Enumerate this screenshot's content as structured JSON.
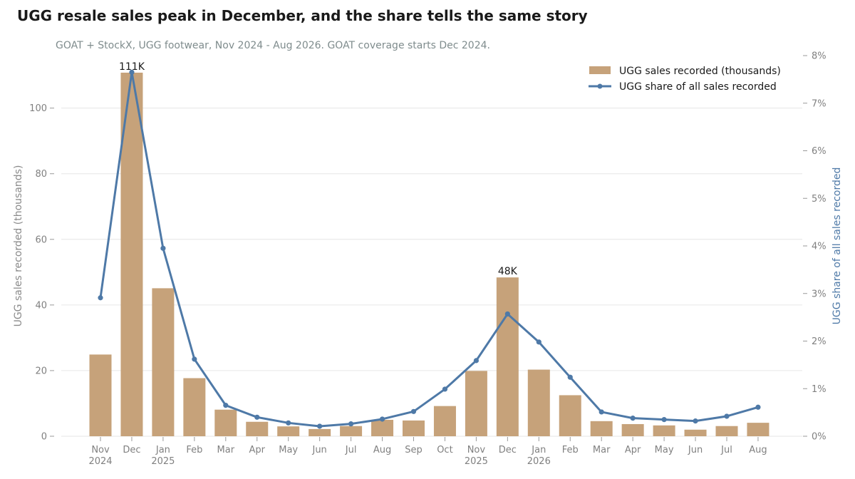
{
  "chart_data": {
    "type": "bar+line",
    "title": "UGG resale sales peak in December, and the share tells the same story",
    "subtitle": "GOAT + StockX, UGG footwear, Nov 2024 - Aug 2026. GOAT coverage starts Dec 2024.",
    "categories": [
      "Nov",
      "Dec",
      "Jan",
      "Feb",
      "Mar",
      "Apr",
      "May",
      "Jun",
      "Jul",
      "Aug",
      "Sep",
      "Oct",
      "Nov",
      "Dec",
      "Jan",
      "Feb",
      "Mar",
      "Apr",
      "May",
      "Jun",
      "Jul",
      "Aug"
    ],
    "year_labels": [
      "2024",
      "",
      "2025",
      "",
      "",
      "",
      "",
      "",
      "",
      "",
      "",
      "",
      "2025",
      "",
      "2026",
      "",
      "",
      "",
      "",
      "",
      "",
      ""
    ],
    "series": [
      {
        "name": "UGG sales recorded (thousands)",
        "type": "bar",
        "axis": "left",
        "color": "#c6a27a",
        "values": [
          24.9,
          110.8,
          45.1,
          17.7,
          8.1,
          4.4,
          3.0,
          2.2,
          3.1,
          5.0,
          4.8,
          9.2,
          19.9,
          48.4,
          20.3,
          12.5,
          4.6,
          3.7,
          3.3,
          2.0,
          3.1,
          4.1
        ]
      },
      {
        "name": "UGG share of all sales recorded",
        "type": "line",
        "axis": "right",
        "color": "#4e79a7",
        "values": [
          2.91,
          7.65,
          3.95,
          1.62,
          0.65,
          0.4,
          0.28,
          0.21,
          0.26,
          0.36,
          0.52,
          0.99,
          1.59,
          2.57,
          1.98,
          1.24,
          0.51,
          0.38,
          0.35,
          0.32,
          0.42,
          0.61
        ]
      }
    ],
    "annotations": [
      {
        "index": 1,
        "text": "111K"
      },
      {
        "index": 13,
        "text": "48K"
      }
    ],
    "left_axis": {
      "label": "UGG sales recorded (thousands)",
      "ylim": [
        0,
        116
      ],
      "ticks": [
        0,
        20,
        40,
        60,
        80,
        100
      ]
    },
    "right_axis": {
      "label": "UGG share of all sales recorded",
      "ylim": [
        0,
        8
      ],
      "ticks": [
        0,
        1,
        2,
        3,
        4,
        5,
        6,
        7,
        8
      ],
      "tick_labels": [
        "0%",
        "1%",
        "2%",
        "3%",
        "4%",
        "5%",
        "6%",
        "7%",
        "8%"
      ]
    },
    "grid": true,
    "legend_position": "top-right"
  }
}
